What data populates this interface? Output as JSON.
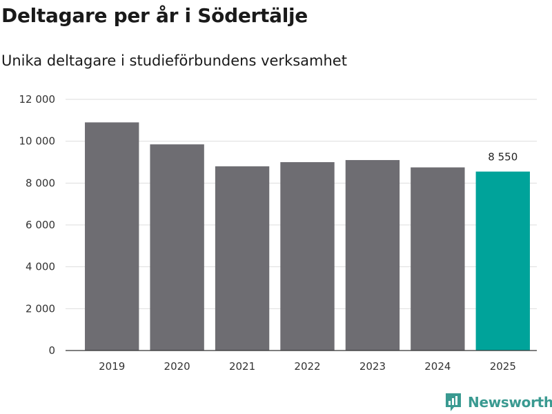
{
  "chart_data": {
    "type": "bar",
    "title": "Deltagare per år i Södertälje",
    "subtitle": "Unika deltagare i studieförbundens verksamhet",
    "categories": [
      "2019",
      "2020",
      "2021",
      "2022",
      "2023",
      "2024",
      "2025"
    ],
    "values": [
      10900,
      9850,
      8800,
      9000,
      9100,
      8750,
      8550
    ],
    "data_labels": [
      {
        "category": "2025",
        "text": "8 550"
      }
    ],
    "ylim": [
      0,
      12000
    ],
    "yticks": [
      0,
      2000,
      4000,
      6000,
      8000,
      10000,
      12000
    ],
    "ytick_labels": [
      "0",
      "2 000",
      "4 000",
      "6 000",
      "8 000",
      "10 000",
      "12 000"
    ],
    "xlabel": "",
    "ylabel": "",
    "grid": true,
    "colors": {
      "bar": "#6e6d72",
      "highlight": "#00a39a",
      "grid": "#dddddd"
    },
    "highlight_category": "2025"
  },
  "brand": {
    "name": "Newsworthy",
    "icon": "newsworthy-logo-icon"
  }
}
